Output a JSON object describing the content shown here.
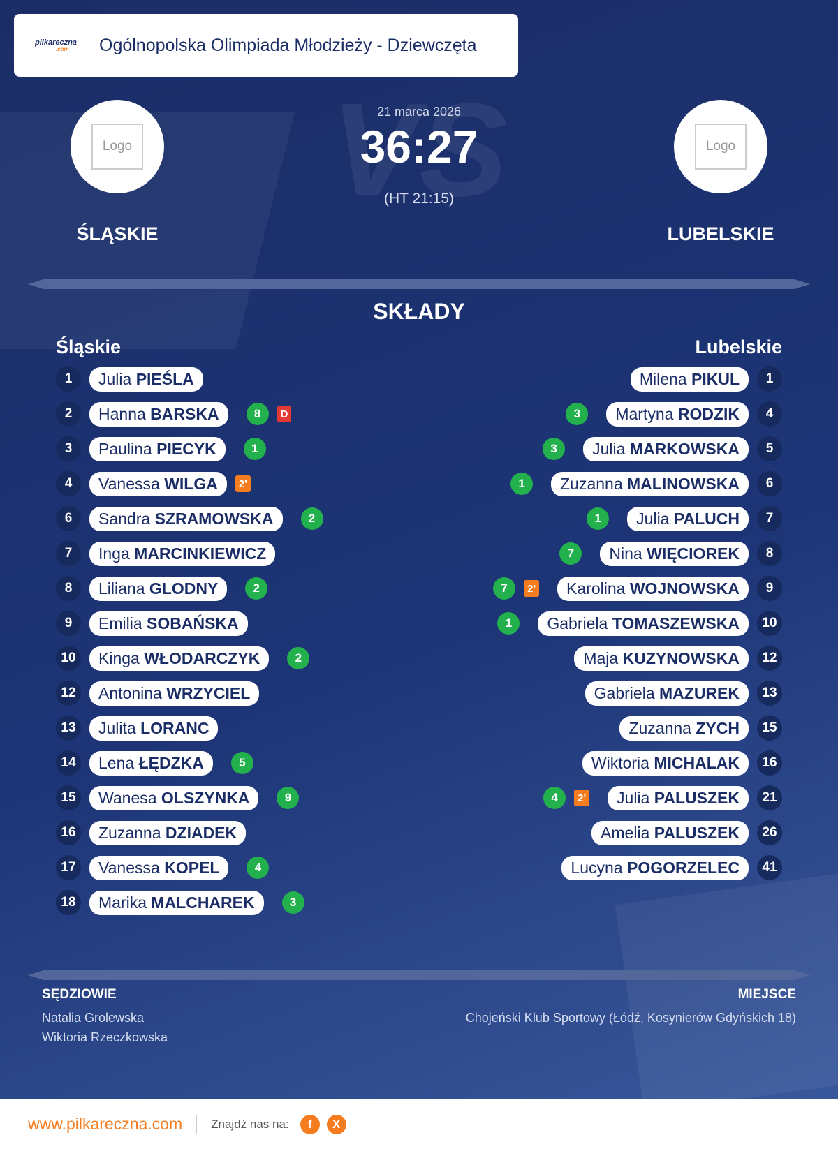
{
  "header": {
    "logo_text": "pilkareczna",
    "logo_suffix": ".com",
    "title": "Ogólnopolska Olimpiada Młodzieży - Dziewczęta"
  },
  "match": {
    "date": "21 marca 2026",
    "score": "36:27",
    "halftime": "(HT 21:15)",
    "watermark": "VS",
    "logo_placeholder": "Logo",
    "home": "ŚLĄSKIE",
    "away": "LUBELSKIE"
  },
  "lineups": {
    "title": "SKŁADY",
    "home": {
      "team": "Śląskie",
      "players": [
        {
          "number": 1,
          "first": "Julia",
          "last": "PIEŚLA",
          "goals": null,
          "cards": []
        },
        {
          "number": 2,
          "first": "Hanna",
          "last": "BARSKA",
          "goals": 8,
          "cards": [
            {
              "label": "D",
              "color": "#e53935"
            }
          ]
        },
        {
          "number": 3,
          "first": "Paulina",
          "last": "PIECYK",
          "goals": 1,
          "cards": []
        },
        {
          "number": 4,
          "first": "Vanessa",
          "last": "WILGA",
          "goals": null,
          "cards": [
            {
              "label": "2'",
              "color": "#f57c1f"
            }
          ]
        },
        {
          "number": 6,
          "first": "Sandra",
          "last": "SZRAMOWSKA",
          "goals": 2,
          "cards": []
        },
        {
          "number": 7,
          "first": "Inga",
          "last": "MARCINKIEWICZ",
          "goals": null,
          "cards": []
        },
        {
          "number": 8,
          "first": "Liliana",
          "last": "GLODNY",
          "goals": 2,
          "cards": []
        },
        {
          "number": 9,
          "first": "Emilia",
          "last": "SOBAŃSKA",
          "goals": null,
          "cards": []
        },
        {
          "number": 10,
          "first": "Kinga",
          "last": "WŁODARCZYK",
          "goals": 2,
          "cards": []
        },
        {
          "number": 12,
          "first": "Antonina",
          "last": "WRZYCIEL",
          "goals": null,
          "cards": []
        },
        {
          "number": 13,
          "first": "Julita",
          "last": "LORANC",
          "goals": null,
          "cards": []
        },
        {
          "number": 14,
          "first": "Lena",
          "last": "ŁĘDZKA",
          "goals": 5,
          "cards": []
        },
        {
          "number": 15,
          "first": "Wanesa",
          "last": "OLSZYNKA",
          "goals": 9,
          "cards": []
        },
        {
          "number": 16,
          "first": "Zuzanna",
          "last": "DZIADEK",
          "goals": null,
          "cards": []
        },
        {
          "number": 17,
          "first": "Vanessa",
          "last": "KOPEL",
          "goals": 4,
          "cards": []
        },
        {
          "number": 18,
          "first": "Marika",
          "last": "MALCHAREK",
          "goals": 3,
          "cards": []
        }
      ]
    },
    "away": {
      "team": "Lubelskie",
      "players": [
        {
          "number": 1,
          "first": "Milena",
          "last": "PIKUL",
          "goals": null,
          "cards": []
        },
        {
          "number": 4,
          "first": "Martyna",
          "last": "RODZIK",
          "goals": 3,
          "cards": []
        },
        {
          "number": 5,
          "first": "Julia",
          "last": "MARKOWSKA",
          "goals": 3,
          "cards": []
        },
        {
          "number": 6,
          "first": "Zuzanna",
          "last": "MALINOWSKA",
          "goals": 1,
          "cards": []
        },
        {
          "number": 7,
          "first": "Julia",
          "last": "PALUCH",
          "goals": 1,
          "cards": []
        },
        {
          "number": 8,
          "first": "Nina",
          "last": "WIĘCIOREK",
          "goals": 7,
          "cards": []
        },
        {
          "number": 9,
          "first": "Karolina",
          "last": "WOJNOWSKA",
          "goals": 7,
          "cards": [
            {
              "label": "2'",
              "color": "#f57c1f"
            }
          ]
        },
        {
          "number": 10,
          "first": "Gabriela",
          "last": "TOMASZEWSKA",
          "goals": 1,
          "cards": []
        },
        {
          "number": 12,
          "first": "Maja",
          "last": "KUZYNOWSKA",
          "goals": null,
          "cards": []
        },
        {
          "number": 13,
          "first": "Gabriela",
          "last": "MAZUREK",
          "goals": null,
          "cards": []
        },
        {
          "number": 15,
          "first": "Zuzanna",
          "last": "ZYCH",
          "goals": null,
          "cards": []
        },
        {
          "number": 16,
          "first": "Wiktoria",
          "last": "MICHALAK",
          "goals": null,
          "cards": []
        },
        {
          "number": 21,
          "first": "Julia",
          "last": "PALUSZEK",
          "goals": 4,
          "cards": [
            {
              "label": "2'",
              "color": "#f57c1f"
            }
          ]
        },
        {
          "number": 26,
          "first": "Amelia",
          "last": "PALUSZEK",
          "goals": null,
          "cards": []
        },
        {
          "number": 41,
          "first": "Lucyna",
          "last": "POGORZELEC",
          "goals": null,
          "cards": []
        }
      ]
    }
  },
  "officials": {
    "title": "SĘDZIOWIE",
    "referees": [
      "Natalia Grolewska",
      "Wiktoria Rzeczkowska"
    ]
  },
  "venue": {
    "title": "MIEJSCE",
    "text": "Chojeński Klub Sportowy (Łódź, Kosynierów Gdyńskich 18)"
  },
  "footer": {
    "url": "www.pilkareczna.com",
    "find": "Znajdź nas na:",
    "icons": [
      "f",
      "X"
    ]
  }
}
